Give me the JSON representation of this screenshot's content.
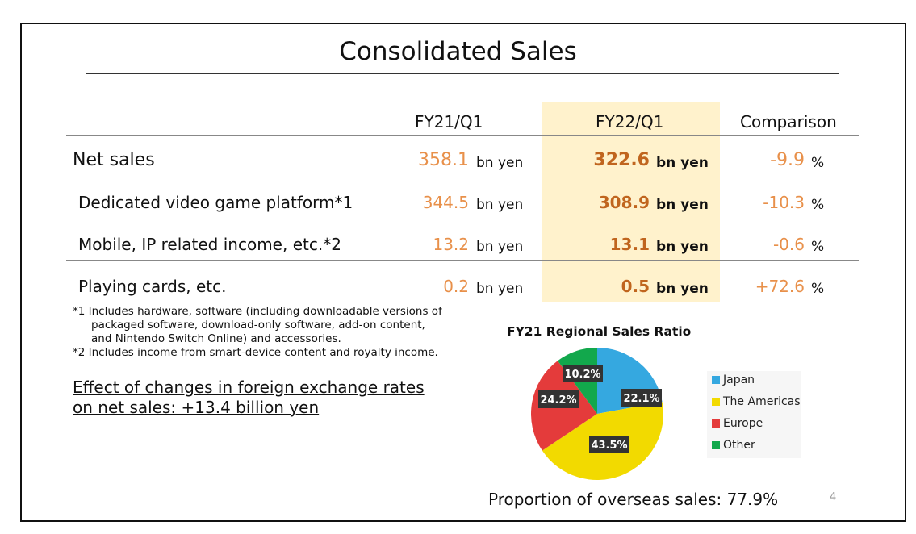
{
  "title": "Consolidated Sales",
  "headers": {
    "fy21": "FY21/Q1",
    "fy22": "FY22/Q1",
    "comparison": "Comparison"
  },
  "rows": [
    {
      "label": "Net sales",
      "fy21": "358.1",
      "fy22": "322.6",
      "comparison": "-9.9",
      "unit": "bn yen",
      "pct": "%"
    },
    {
      "label": "Dedicated video game platform*1",
      "fy21": "344.5",
      "fy22": "308.9",
      "comparison": "-10.3",
      "unit": "bn yen",
      "pct": "%"
    },
    {
      "label": "Mobile, IP related income, etc.*2",
      "fy21": "13.2",
      "fy22": "13.1",
      "comparison": "-0.6",
      "unit": "bn yen",
      "pct": "%"
    },
    {
      "label": "Playing cards, etc.",
      "fy21": "0.2",
      "fy22": "0.5",
      "comparison": "+72.6",
      "unit": "bn yen",
      "pct": "%"
    }
  ],
  "notes": [
    "*1 Includes hardware, software (including downloadable versions of",
    "packaged software, download-only software, add-on content,",
    "and Nintendo Switch Online) and accessories.",
    "*2 Includes income from smart-device content and royalty income."
  ],
  "fx": {
    "line1": "Effect of changes in foreign exchange rates",
    "line2": "on net sales: +13.4 billion yen"
  },
  "chart_data": {
    "type": "pie",
    "title": "FY21 Regional Sales Ratio",
    "categories": [
      "Japan",
      "The Americas",
      "Europe",
      "Other"
    ],
    "values": [
      22.1,
      43.5,
      24.2,
      10.2
    ],
    "labels": [
      "22.1%",
      "43.5%",
      "24.2%",
      "10.2%"
    ],
    "colors": [
      "#35A8E0",
      "#F2DA00",
      "#E43B3B",
      "#12A84C"
    ],
    "legend": "right"
  },
  "overseas": "Proportion of overseas sales: 77.9%",
  "page_number": "4"
}
